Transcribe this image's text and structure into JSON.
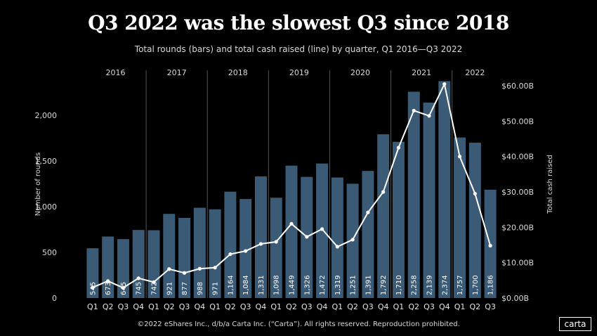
{
  "title": "Q3 2022 was the slowest Q3 since 2018",
  "subtitle": "Total rounds (bars) and total cash raised (line) by quarter, Q1 2016—Q3 2022",
  "footer": "©2022 eShares Inc., d/b/a Carta Inc. (“Carta”). All rights reserved. Reproduction prohibited.",
  "logo": "carta",
  "colors": {
    "bar": "#3a5a75",
    "line": "#ffffff",
    "background": "#000000"
  },
  "chart_data": {
    "type": "bar",
    "title": "Q3 2022 was the slowest Q3 since 2018",
    "categories": [
      "Q1",
      "Q2",
      "Q3",
      "Q4",
      "Q1",
      "Q2",
      "Q3",
      "Q4",
      "Q1",
      "Q2",
      "Q3",
      "Q4",
      "Q1",
      "Q2",
      "Q3",
      "Q4",
      "Q1",
      "Q2",
      "Q3",
      "Q4",
      "Q1",
      "Q2",
      "Q3",
      "Q4",
      "Q1",
      "Q2",
      "Q3"
    ],
    "years": [
      "2016",
      "2017",
      "2018",
      "2019",
      "2020",
      "2021",
      "2022"
    ],
    "series": [
      {
        "name": "Number of rounds",
        "type": "bar",
        "axis": "left",
        "values": [
          545,
          673,
          645,
          745,
          742,
          921,
          877,
          988,
          971,
          1164,
          1084,
          1331,
          1098,
          1449,
          1326,
          1472,
          1319,
          1251,
          1391,
          1792,
          1710,
          2258,
          2139,
          2374,
          1757,
          1700,
          1186
        ],
        "labels": [
          "545",
          "673",
          "645",
          "745",
          "742",
          "921",
          "877",
          "988",
          "971",
          "1,164",
          "1,084",
          "1,331",
          "1,098",
          "1,449",
          "1,326",
          "1,472",
          "1,319",
          "1,251",
          "1,391",
          "1,792",
          "1,710",
          "2,258",
          "2,139",
          "2,374",
          "1,757",
          "1,700",
          "1,186"
        ]
      },
      {
        "name": "Total cash raised",
        "type": "line",
        "axis": "right",
        "unit": "billion USD",
        "values": [
          3.0,
          4.8,
          2.9,
          5.6,
          4.5,
          8.2,
          7.1,
          8.3,
          8.6,
          12.4,
          13.3,
          15.3,
          15.9,
          21.0,
          17.3,
          19.5,
          14.5,
          16.5,
          24.2,
          30.0,
          42.5,
          53.0,
          51.5,
          60.5,
          40.0,
          29.5,
          14.8
        ]
      }
    ],
    "ylabel": "Number of rounds",
    "y2label": "Total cash raised",
    "ylim": [
      0,
      2400
    ],
    "y2lim": [
      0,
      62
    ],
    "yticks": [
      "0",
      "500",
      "1,000",
      "1,500",
      "2,000"
    ],
    "y2ticks": [
      "$0.00B",
      "$10.00B",
      "$20.00B",
      "$30.00B",
      "$40.00B",
      "$50.00B",
      "$60.00B"
    ]
  }
}
